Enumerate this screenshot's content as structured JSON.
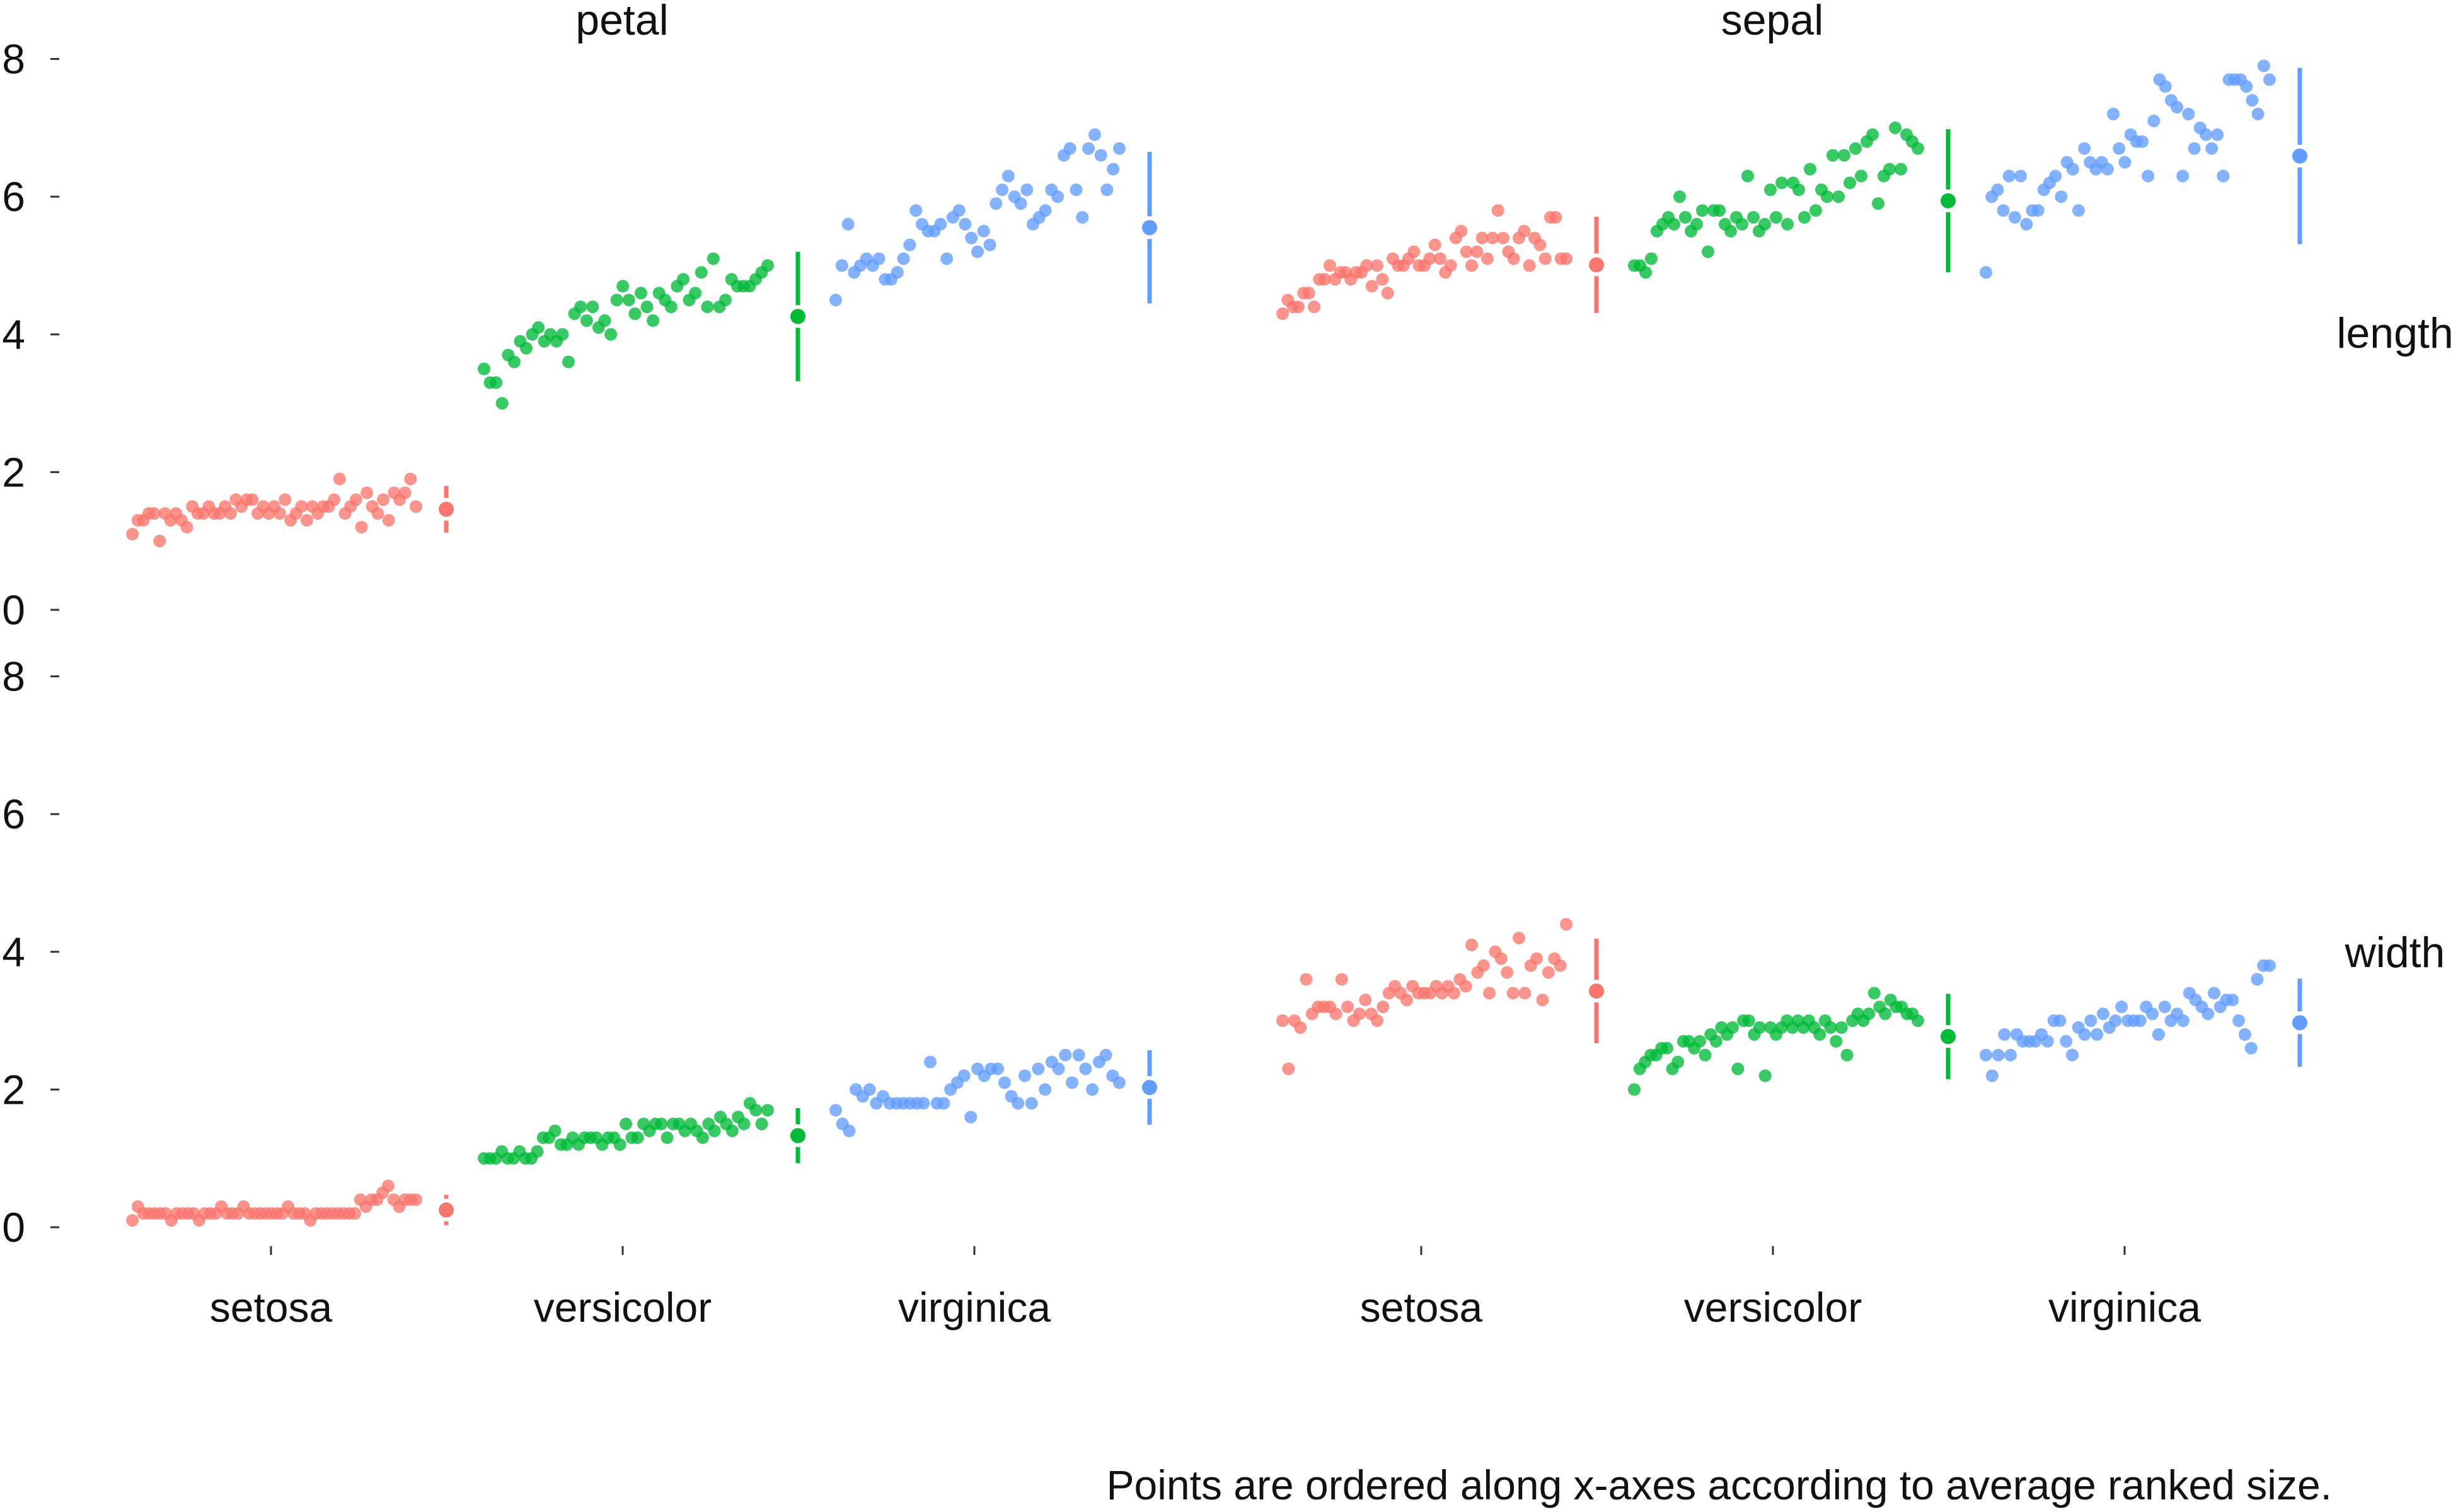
{
  "chart_data": {
    "type": "scatter",
    "description_note": "",
    "facets": {
      "columns": [
        "petal",
        "sepal"
      ],
      "rows": [
        "length",
        "width"
      ]
    },
    "categories": [
      "setosa",
      "versicolor",
      "virginica"
    ],
    "y_ticks": [
      "0",
      "2",
      "4",
      "6",
      "8"
    ],
    "ylim": [
      0,
      8
    ],
    "grid": false,
    "legend": "none",
    "colors": {
      "setosa": "#F8766D",
      "versicolor": "#00BA38",
      "virginica": "#619CFF"
    },
    "panels": [
      {
        "column": "petal",
        "row": "length",
        "series": [
          {
            "category": "setosa",
            "mean": 1.46,
            "sd": 0.17,
            "values": [
              1.1,
              1.3,
              1.3,
              1.4,
              1.4,
              1.0,
              1.4,
              1.3,
              1.4,
              1.3,
              1.2,
              1.5,
              1.4,
              1.4,
              1.5,
              1.4,
              1.4,
              1.5,
              1.4,
              1.6,
              1.5,
              1.6,
              1.6,
              1.4,
              1.5,
              1.4,
              1.5,
              1.4,
              1.6,
              1.3,
              1.4,
              1.5,
              1.3,
              1.5,
              1.4,
              1.5,
              1.5,
              1.6,
              1.9,
              1.4,
              1.5,
              1.6,
              1.2,
              1.7,
              1.5,
              1.4,
              1.6,
              1.3,
              1.7,
              1.6,
              1.7,
              1.9,
              1.5
            ]
          },
          {
            "category": "versicolor",
            "mean": 4.26,
            "sd": 0.47,
            "values": [
              3.5,
              3.3,
              3.3,
              3.0,
              3.7,
              3.6,
              3.9,
              3.8,
              4.0,
              4.1,
              3.9,
              4.0,
              3.9,
              4.0,
              3.6,
              4.3,
              4.4,
              4.2,
              4.4,
              4.1,
              4.2,
              4.0,
              4.5,
              4.7,
              4.5,
              4.3,
              4.6,
              4.4,
              4.2,
              4.6,
              4.5,
              4.4,
              4.7,
              4.8,
              4.5,
              4.6,
              4.9,
              4.4,
              5.1,
              4.4,
              4.5,
              4.8,
              4.7,
              4.7,
              4.7,
              4.8,
              4.9,
              5.0
            ]
          },
          {
            "category": "virginica",
            "mean": 5.55,
            "sd": 0.55,
            "values": [
              4.5,
              5.0,
              5.6,
              4.9,
              5.0,
              5.1,
              5.0,
              5.1,
              4.8,
              4.8,
              4.9,
              5.1,
              5.3,
              5.8,
              5.6,
              5.5,
              5.5,
              5.6,
              5.1,
              5.7,
              5.8,
              5.6,
              5.4,
              5.2,
              5.5,
              5.3,
              5.9,
              6.1,
              6.3,
              6.0,
              5.9,
              6.1,
              5.6,
              5.7,
              5.8,
              6.1,
              6.0,
              6.6,
              6.7,
              6.1,
              5.7,
              6.7,
              6.9,
              6.6,
              6.1,
              6.4,
              6.7
            ]
          }
        ]
      },
      {
        "column": "sepal",
        "row": "length",
        "series": [
          {
            "category": "setosa",
            "mean": 5.01,
            "sd": 0.35,
            "values": [
              4.3,
              4.5,
              4.4,
              4.4,
              4.6,
              4.6,
              4.4,
              4.8,
              4.8,
              5.0,
              4.8,
              4.9,
              4.9,
              4.8,
              4.9,
              4.9,
              5.0,
              4.7,
              5.0,
              4.8,
              4.6,
              5.1,
              5.0,
              5.0,
              5.1,
              5.2,
              5.0,
              5.0,
              5.1,
              5.3,
              5.1,
              4.9,
              5.0,
              5.4,
              5.5,
              5.2,
              5.0,
              5.2,
              5.4,
              5.1,
              5.4,
              5.8,
              5.4,
              5.2,
              5.1,
              5.4,
              5.5,
              5.0,
              5.4,
              5.3,
              5.1,
              5.7,
              5.7,
              5.1,
              5.1
            ]
          },
          {
            "category": "versicolor",
            "mean": 5.94,
            "sd": 0.52,
            "values": [
              5.0,
              5.0,
              4.9,
              5.1,
              5.5,
              5.6,
              5.7,
              5.6,
              6.0,
              5.7,
              5.5,
              5.6,
              5.8,
              5.2,
              5.8,
              5.8,
              5.6,
              5.5,
              5.7,
              5.6,
              6.3,
              5.7,
              5.5,
              5.6,
              6.1,
              5.7,
              6.2,
              5.6,
              6.2,
              6.1,
              5.7,
              6.4,
              5.8,
              6.1,
              6.0,
              6.6,
              6.0,
              6.6,
              6.2,
              6.7,
              6.3,
              6.8,
              6.9,
              5.9,
              6.3,
              6.4,
              7.0,
              6.4,
              6.9,
              6.8,
              6.7
            ]
          },
          {
            "category": "virginica",
            "mean": 6.59,
            "sd": 0.64,
            "values": [
              4.9,
              6.0,
              6.1,
              5.8,
              6.3,
              5.7,
              6.3,
              5.6,
              5.8,
              5.8,
              6.1,
              6.2,
              6.3,
              6.0,
              6.5,
              6.4,
              5.8,
              6.7,
              6.5,
              6.4,
              6.5,
              6.4,
              7.2,
              6.7,
              6.5,
              6.9,
              6.8,
              6.8,
              6.3,
              7.1,
              7.7,
              7.6,
              7.4,
              7.3,
              6.3,
              7.2,
              6.7,
              7.0,
              6.9,
              6.7,
              6.9,
              6.3,
              7.7,
              7.7,
              7.7,
              7.6,
              7.4,
              7.2,
              7.9,
              7.7
            ]
          }
        ]
      },
      {
        "column": "petal",
        "row": "width",
        "series": [
          {
            "category": "setosa",
            "mean": 0.25,
            "sd": 0.11,
            "values": [
              0.1,
              0.3,
              0.2,
              0.2,
              0.2,
              0.2,
              0.2,
              0.1,
              0.2,
              0.2,
              0.2,
              0.2,
              0.1,
              0.2,
              0.2,
              0.2,
              0.3,
              0.2,
              0.2,
              0.2,
              0.3,
              0.2,
              0.2,
              0.2,
              0.2,
              0.2,
              0.2,
              0.2,
              0.3,
              0.2,
              0.2,
              0.2,
              0.1,
              0.2,
              0.2,
              0.2,
              0.2,
              0.2,
              0.2,
              0.2,
              0.2,
              0.4,
              0.3,
              0.4,
              0.4,
              0.5,
              0.6,
              0.4,
              0.3,
              0.4,
              0.4,
              0.4
            ]
          },
          {
            "category": "versicolor",
            "mean": 1.33,
            "sd": 0.2,
            "values": [
              1.0,
              1.0,
              1.0,
              1.1,
              1.0,
              1.0,
              1.1,
              1.0,
              1.0,
              1.1,
              1.3,
              1.3,
              1.4,
              1.2,
              1.2,
              1.3,
              1.2,
              1.3,
              1.3,
              1.3,
              1.2,
              1.3,
              1.3,
              1.2,
              1.5,
              1.3,
              1.3,
              1.5,
              1.4,
              1.5,
              1.5,
              1.3,
              1.5,
              1.5,
              1.4,
              1.5,
              1.4,
              1.3,
              1.5,
              1.4,
              1.6,
              1.5,
              1.4,
              1.6,
              1.5,
              1.8,
              1.7,
              1.5,
              1.7
            ]
          },
          {
            "category": "virginica",
            "mean": 2.03,
            "sd": 0.27,
            "values": [
              1.7,
              1.5,
              1.4,
              2.0,
              1.9,
              2.0,
              1.8,
              1.9,
              1.8,
              1.8,
              1.8,
              1.8,
              1.8,
              1.8,
              2.4,
              1.8,
              1.8,
              2.0,
              2.1,
              2.2,
              1.6,
              2.3,
              2.2,
              2.3,
              2.3,
              2.1,
              1.9,
              1.8,
              2.2,
              1.8,
              2.3,
              2.0,
              2.4,
              2.3,
              2.5,
              2.1,
              2.5,
              2.3,
              2.0,
              2.4,
              2.5,
              2.2,
              2.1
            ]
          }
        ]
      },
      {
        "column": "sepal",
        "row": "width",
        "series": [
          {
            "category": "setosa",
            "mean": 3.43,
            "sd": 0.38,
            "values": [
              3.0,
              2.3,
              3.0,
              2.9,
              3.6,
              3.1,
              3.2,
              3.2,
              3.2,
              3.1,
              3.6,
              3.2,
              3.0,
              3.1,
              3.3,
              3.1,
              3.0,
              3.2,
              3.4,
              3.5,
              3.4,
              3.3,
              3.5,
              3.4,
              3.4,
              3.4,
              3.5,
              3.4,
              3.5,
              3.4,
              3.6,
              3.5,
              4.1,
              3.7,
              3.8,
              3.4,
              4.0,
              3.9,
              3.7,
              3.4,
              4.2,
              3.4,
              3.8,
              3.9,
              3.3,
              3.7,
              3.9,
              3.8,
              4.4
            ]
          },
          {
            "category": "versicolor",
            "mean": 2.77,
            "sd": 0.31,
            "values": [
              2.0,
              2.3,
              2.4,
              2.5,
              2.5,
              2.6,
              2.6,
              2.3,
              2.4,
              2.7,
              2.7,
              2.6,
              2.7,
              2.5,
              2.8,
              2.7,
              2.9,
              2.8,
              2.9,
              2.3,
              3.0,
              3.0,
              2.8,
              2.9,
              2.2,
              2.9,
              2.8,
              2.9,
              3.0,
              2.9,
              3.0,
              2.9,
              3.0,
              2.9,
              2.8,
              3.0,
              2.9,
              2.7,
              2.9,
              2.5,
              3.0,
              3.1,
              3.0,
              3.1,
              3.4,
              3.2,
              3.1,
              3.3,
              3.2,
              3.2,
              3.1,
              3.1,
              3.0
            ]
          },
          {
            "category": "virginica",
            "mean": 2.97,
            "sd": 0.32,
            "values": [
              2.5,
              2.2,
              2.5,
              2.8,
              2.5,
              2.8,
              2.7,
              2.7,
              2.7,
              2.8,
              2.7,
              3.0,
              3.0,
              2.7,
              2.5,
              2.9,
              2.8,
              3.0,
              2.8,
              3.1,
              2.9,
              3.0,
              3.2,
              3.0,
              3.0,
              3.0,
              3.2,
              3.1,
              2.8,
              3.2,
              3.0,
              3.1,
              3.0,
              3.4,
              3.3,
              3.2,
              3.1,
              3.4,
              3.2,
              3.3,
              3.3,
              3.0,
              2.8,
              2.6,
              3.6,
              3.8,
              3.8
            ]
          }
        ]
      }
    ],
    "caption": "Points are ordered along x-axes according to average ranked size."
  }
}
